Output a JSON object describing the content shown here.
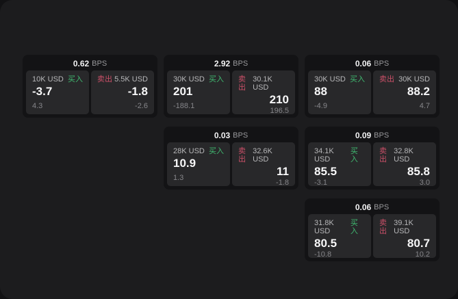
{
  "labels": {
    "bps_unit": "BPS",
    "buy": "买入",
    "sell": "卖出"
  },
  "theme": {
    "page_bg": "#121214",
    "panel_bg": "#1c1c1e",
    "card_bg": "#131315",
    "tile_bg": "#28282a",
    "buy_green": "#40b970",
    "sell_red": "#cb5068",
    "value_white": "#f7f7f8",
    "label_grey": "#b7b7b9",
    "muted_grey": "#86868a"
  },
  "cards": [
    {
      "bps": "0.62",
      "buy": {
        "amount": "10K USD",
        "value": "-3.7",
        "change": "4.3"
      },
      "sell": {
        "amount": "5.5K USD",
        "value": "-1.8",
        "change": "-2.6"
      }
    },
    {
      "bps": "2.92",
      "buy": {
        "amount": "30K USD",
        "value": "201",
        "change": "-188.1"
      },
      "sell": {
        "amount": "30.1K USD",
        "value": "210",
        "change": "196.5"
      }
    },
    {
      "bps": "0.06",
      "buy": {
        "amount": "30K USD",
        "value": "88",
        "change": "-4.9"
      },
      "sell": {
        "amount": "30K USD",
        "value": "88.2",
        "change": "4.7"
      }
    },
    {
      "bps": "0.03",
      "buy": {
        "amount": "28K USD",
        "value": "10.9",
        "change": "1.3"
      },
      "sell": {
        "amount": "32.6K USD",
        "value": "11",
        "change": "-1.8"
      }
    },
    {
      "bps": "0.09",
      "buy": {
        "amount": "34.1K USD",
        "value": "85.5",
        "change": "-3.1"
      },
      "sell": {
        "amount": "32.8K USD",
        "value": "85.8",
        "change": "3.0"
      }
    },
    {
      "bps": "0.06",
      "buy": {
        "amount": "31.8K USD",
        "value": "80.5",
        "change": "-10.8"
      },
      "sell": {
        "amount": "39.1K USD",
        "value": "80.7",
        "change": "10.2"
      }
    }
  ]
}
